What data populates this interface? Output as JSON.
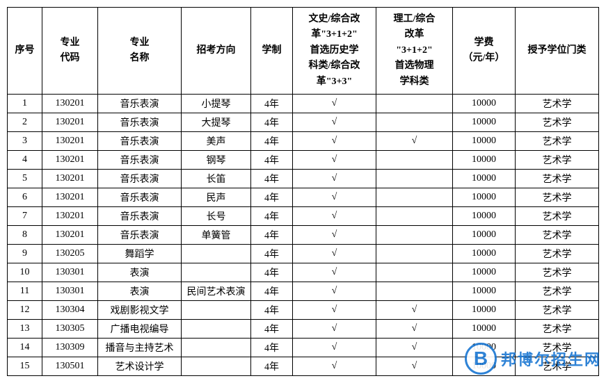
{
  "table": {
    "headers": {
      "seq": "序号",
      "code": "专业\n代码",
      "major": "专业\n名称",
      "direction": "招考方向",
      "duration": "学制",
      "category1": "文史/综合改\n革\"3+1+2\"\n首选历史学\n科类/综合改\n革\"3+3\"",
      "category2": "理工/综合\n改革\n\"3+1+2\"\n首选物理\n学科类",
      "fee": "学费\n（元/年）",
      "degree": "授予学位门类"
    },
    "rows": [
      {
        "seq": "1",
        "code": "130201",
        "major": "音乐表演",
        "direction": "小提琴",
        "duration": "4年",
        "cat1": "√",
        "cat2": "",
        "fee": "10000",
        "degree": "艺术学"
      },
      {
        "seq": "2",
        "code": "130201",
        "major": "音乐表演",
        "direction": "大提琴",
        "duration": "4年",
        "cat1": "√",
        "cat2": "",
        "fee": "10000",
        "degree": "艺术学"
      },
      {
        "seq": "3",
        "code": "130201",
        "major": "音乐表演",
        "direction": "美声",
        "duration": "4年",
        "cat1": "√",
        "cat2": "√",
        "fee": "10000",
        "degree": "艺术学"
      },
      {
        "seq": "4",
        "code": "130201",
        "major": "音乐表演",
        "direction": "钢琴",
        "duration": "4年",
        "cat1": "√",
        "cat2": "",
        "fee": "10000",
        "degree": "艺术学"
      },
      {
        "seq": "5",
        "code": "130201",
        "major": "音乐表演",
        "direction": "长笛",
        "duration": "4年",
        "cat1": "√",
        "cat2": "",
        "fee": "10000",
        "degree": "艺术学"
      },
      {
        "seq": "6",
        "code": "130201",
        "major": "音乐表演",
        "direction": "民声",
        "duration": "4年",
        "cat1": "√",
        "cat2": "",
        "fee": "10000",
        "degree": "艺术学"
      },
      {
        "seq": "7",
        "code": "130201",
        "major": "音乐表演",
        "direction": "长号",
        "duration": "4年",
        "cat1": "√",
        "cat2": "",
        "fee": "10000",
        "degree": "艺术学"
      },
      {
        "seq": "8",
        "code": "130201",
        "major": "音乐表演",
        "direction": "单簧管",
        "duration": "4年",
        "cat1": "√",
        "cat2": "",
        "fee": "10000",
        "degree": "艺术学"
      },
      {
        "seq": "9",
        "code": "130205",
        "major": "舞蹈学",
        "direction": "",
        "duration": "4年",
        "cat1": "√",
        "cat2": "",
        "fee": "10000",
        "degree": "艺术学"
      },
      {
        "seq": "10",
        "code": "130301",
        "major": "表演",
        "direction": "",
        "duration": "4年",
        "cat1": "√",
        "cat2": "",
        "fee": "10000",
        "degree": "艺术学"
      },
      {
        "seq": "11",
        "code": "130301",
        "major": "表演",
        "direction": "民间艺术表演",
        "duration": "4年",
        "cat1": "√",
        "cat2": "",
        "fee": "10000",
        "degree": "艺术学"
      },
      {
        "seq": "12",
        "code": "130304",
        "major": "戏剧影视文学",
        "direction": "",
        "duration": "4年",
        "cat1": "√",
        "cat2": "√",
        "fee": "10000",
        "degree": "艺术学"
      },
      {
        "seq": "13",
        "code": "130305",
        "major": "广播电视编导",
        "direction": "",
        "duration": "4年",
        "cat1": "√",
        "cat2": "√",
        "fee": "10000",
        "degree": "艺术学"
      },
      {
        "seq": "14",
        "code": "130309",
        "major": "播音与主持艺术",
        "direction": "",
        "duration": "4年",
        "cat1": "√",
        "cat2": "√",
        "fee": "10000",
        "degree": "艺术学"
      },
      {
        "seq": "15",
        "code": "130501",
        "major": "艺术设计学",
        "direction": "",
        "duration": "4年",
        "cat1": "√",
        "cat2": "√",
        "fee": "10000",
        "degree": "艺术学"
      }
    ]
  },
  "watermark": {
    "logo_letter": "B",
    "text": "邦博尔招生网",
    "logo_color": "#1976d2",
    "text_color": "#1976d2"
  }
}
